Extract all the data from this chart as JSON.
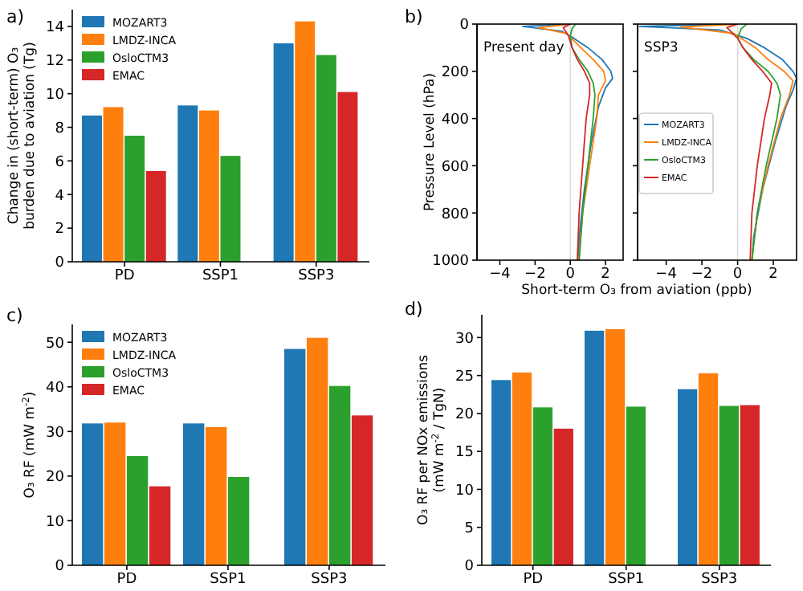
{
  "chart_data": [
    {
      "type": "bar",
      "title": "a)",
      "ylabel": "Change in (short-term) O₃\nburden due to aviation (Tg)",
      "categories": [
        "PD",
        "SSP1",
        "SSP3"
      ],
      "ylim": [
        0,
        15
      ],
      "yticks": [
        0,
        2,
        4,
        6,
        8,
        10,
        12,
        14
      ],
      "legend": "top left",
      "series": [
        {
          "name": "MOZART3",
          "color": "#1f77b4",
          "values": [
            8.7,
            9.3,
            13.0
          ]
        },
        {
          "name": "LMDZ-INCA",
          "color": "#ff7f0e",
          "values": [
            9.2,
            9.0,
            14.3
          ]
        },
        {
          "name": "OsloCTM3",
          "color": "#2ca02c",
          "values": [
            7.5,
            6.3,
            12.3
          ]
        },
        {
          "name": "EMAC",
          "color": "#d62728",
          "values": [
            5.4,
            null,
            10.1
          ]
        }
      ]
    },
    {
      "type": "line",
      "title": "b)",
      "ylabel": "Pressure Level (hPa)",
      "xlabel": "Short-term O₃ from aviation (ppb)",
      "annotations": [
        "Present day"
      ],
      "xlim": [
        -5.3,
        3.0
      ],
      "xticks": [
        -4,
        -2,
        0,
        2
      ],
      "ylim": [
        1000,
        0
      ],
      "yticks": [
        0,
        200,
        400,
        600,
        800,
        1000
      ],
      "ref_lines": [
        {
          "axis": "x",
          "value": 0,
          "color": "#d9d9d9"
        }
      ],
      "series": [
        {
          "color": "#1f77b4",
          "x": [
            0.0,
            -2.7,
            -0.5,
            0.2,
            1.0,
            1.8,
            2.3,
            2.4,
            2.0,
            1.6,
            1.2,
            0.8,
            0.5,
            0.45
          ],
          "values": [
            0,
            10,
            30,
            60,
            100,
            150,
            200,
            230,
            270,
            350,
            500,
            700,
            900,
            1000
          ]
        },
        {
          "color": "#ff7f0e",
          "x": [
            0.0,
            -1.8,
            -0.2,
            0.6,
            1.3,
            1.9,
            2.0,
            1.6,
            1.5,
            1.1,
            0.7,
            0.5
          ],
          "values": [
            0,
            15,
            40,
            100,
            150,
            200,
            240,
            300,
            400,
            600,
            800,
            1000
          ]
        },
        {
          "color": "#2ca02c",
          "x": [
            0.3,
            0.1,
            0.0,
            0.1,
            0.5,
            1.0,
            1.3,
            1.4,
            1.3,
            1.0,
            0.7,
            0.5
          ],
          "values": [
            0,
            20,
            50,
            100,
            150,
            200,
            250,
            300,
            400,
            600,
            800,
            1000
          ]
        },
        {
          "color": "#d62728",
          "x": [
            0.0,
            -0.4,
            -0.1,
            0.1,
            0.4,
            0.8,
            1.1,
            1.1,
            0.9,
            0.7,
            0.5,
            0.4
          ],
          "values": [
            0,
            15,
            50,
            100,
            150,
            200,
            250,
            300,
            400,
            600,
            800,
            1000
          ]
        }
      ]
    },
    {
      "type": "line",
      "annotations": [
        "SSP3"
      ],
      "xlim": [
        -5.6,
        3.3
      ],
      "xticks": [
        -4,
        -2,
        0,
        2
      ],
      "ylim": [
        1000,
        0
      ],
      "yticks": [
        0,
        200,
        400,
        600,
        800,
        1000
      ],
      "tick_labels": "x",
      "legend": "left",
      "ref_lines": [
        {
          "axis": "x",
          "value": 0,
          "color": "#d9d9d9"
        }
      ],
      "series": [
        {
          "name": "MOZART3",
          "color": "#1f77b4",
          "x": [
            0.0,
            -5.5,
            -1.0,
            0.5,
            1.5,
            2.5,
            3.1,
            3.3,
            3.1,
            2.7,
            2.1,
            1.4,
            0.9,
            0.8
          ],
          "values": [
            0,
            10,
            25,
            60,
            100,
            150,
            200,
            230,
            280,
            350,
            500,
            700,
            900,
            1000
          ]
        },
        {
          "name": "LMDZ-INCA",
          "color": "#ff7f0e",
          "x": [
            0.0,
            -3.2,
            -0.2,
            1.0,
            1.7,
            2.6,
            3.1,
            2.9,
            2.4,
            1.7,
            1.1,
            0.8
          ],
          "values": [
            0,
            12,
            40,
            100,
            150,
            200,
            240,
            300,
            400,
            600,
            800,
            1000
          ]
        },
        {
          "name": "OsloCTM3",
          "color": "#2ca02c",
          "x": [
            0.5,
            0.2,
            0.0,
            0.3,
            0.9,
            1.7,
            2.2,
            2.4,
            2.2,
            1.6,
            1.1,
            0.8
          ],
          "values": [
            0,
            20,
            60,
            100,
            150,
            200,
            250,
            300,
            400,
            600,
            800,
            1000
          ]
        },
        {
          "name": "EMAC",
          "color": "#d62728",
          "x": [
            0.0,
            -0.6,
            0.0,
            0.3,
            0.8,
            1.4,
            1.9,
            1.8,
            1.5,
            1.1,
            0.8,
            0.7
          ],
          "values": [
            0,
            15,
            60,
            100,
            150,
            200,
            250,
            300,
            400,
            600,
            800,
            1000
          ]
        }
      ]
    },
    {
      "type": "bar",
      "title": "c)",
      "ylabel": "O₃ RF (mW m$^{-2}$)",
      "categories": [
        "PD",
        "SSP1",
        "SSP3"
      ],
      "ylim": [
        0,
        54
      ],
      "yticks": [
        0,
        10,
        20,
        30,
        40,
        50
      ],
      "legend": "top left",
      "series": [
        {
          "name": "MOZART3",
          "color": "#1f77b4",
          "values": [
            31.8,
            31.8,
            48.5
          ]
        },
        {
          "name": "LMDZ-INCA",
          "color": "#ff7f0e",
          "values": [
            32.0,
            31.0,
            51.0
          ]
        },
        {
          "name": "OsloCTM3",
          "color": "#2ca02c",
          "values": [
            24.5,
            19.8,
            40.2
          ]
        },
        {
          "name": "EMAC",
          "color": "#d62728",
          "values": [
            17.7,
            null,
            33.6
          ]
        }
      ]
    },
    {
      "type": "bar",
      "title": "d)",
      "ylabel": "O₃ RF per NOx emissions\n(mW m$^{-2}$ / TgN)",
      "categories": [
        "PD",
        "SSP1",
        "SSP3"
      ],
      "ylim": [
        0,
        33
      ],
      "yticks": [
        0,
        5,
        10,
        15,
        20,
        25,
        30
      ],
      "series": [
        {
          "color": "#1f77b4",
          "values": [
            24.4,
            30.9,
            23.2
          ]
        },
        {
          "color": "#ff7f0e",
          "values": [
            25.4,
            31.1,
            25.3
          ]
        },
        {
          "color": "#2ca02c",
          "values": [
            20.8,
            20.9,
            21.0
          ]
        },
        {
          "color": "#d62728",
          "values": [
            18.0,
            null,
            21.1
          ]
        }
      ]
    }
  ]
}
